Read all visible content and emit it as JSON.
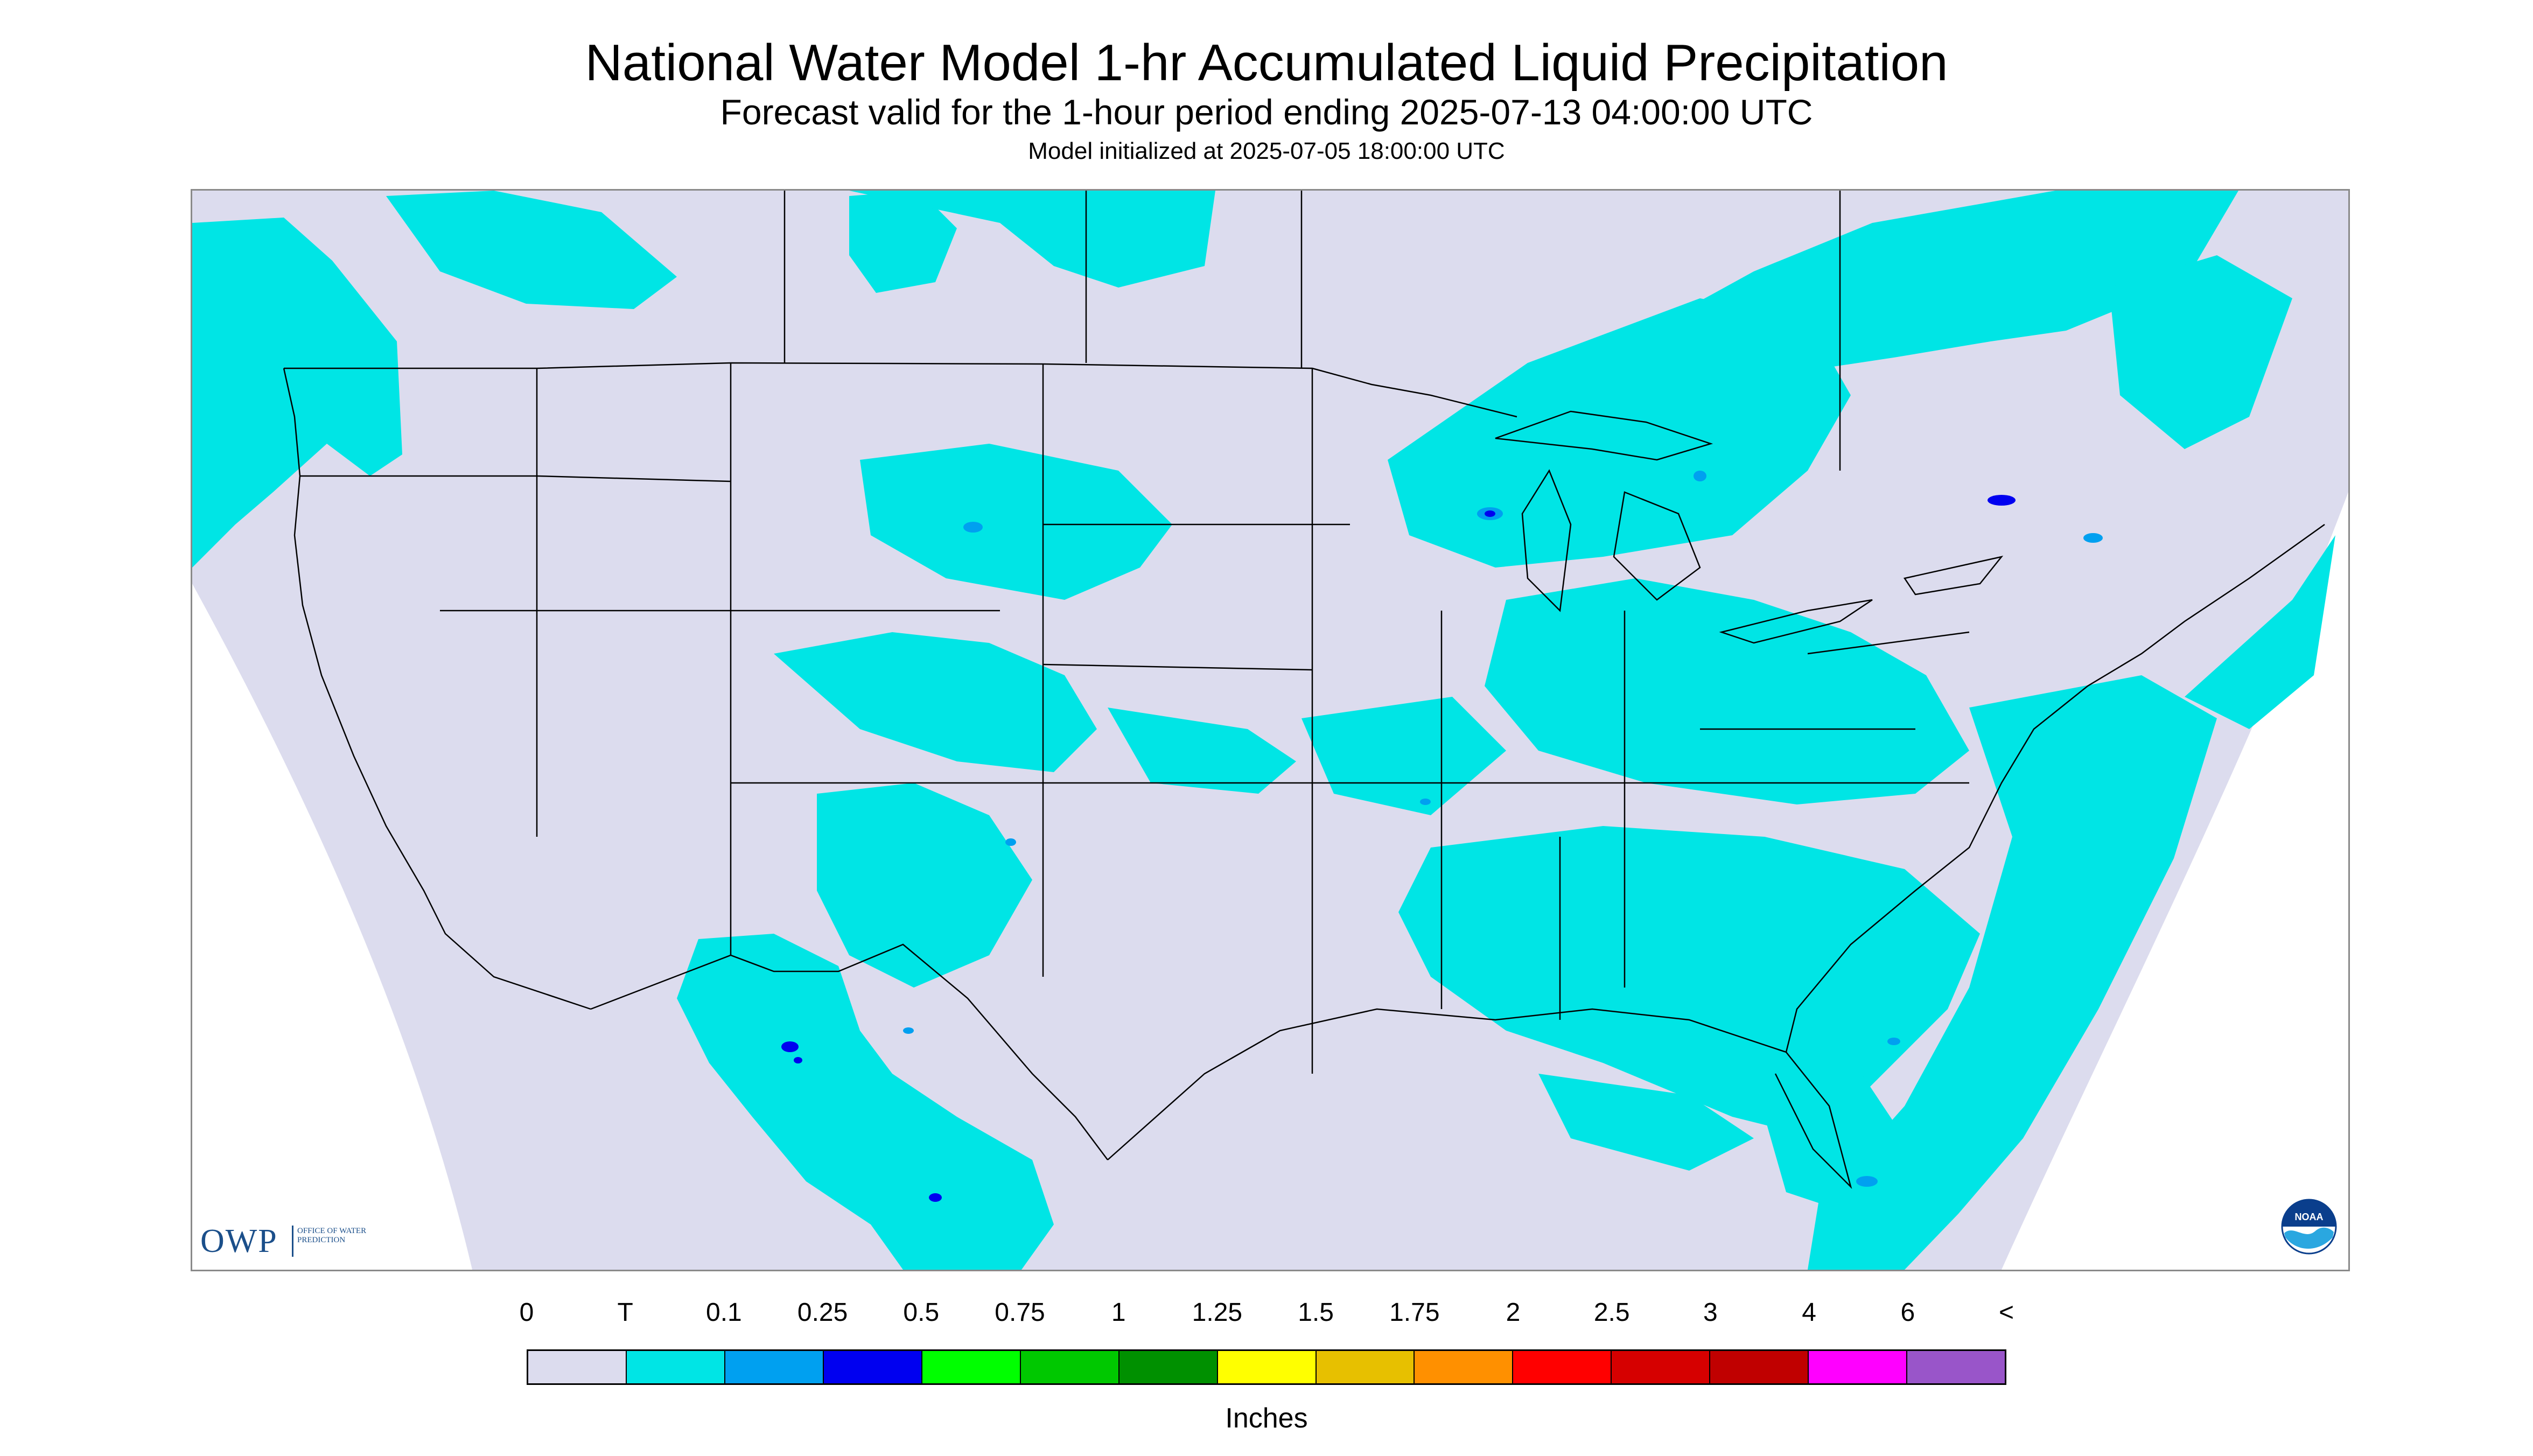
{
  "header": {
    "title": "National Water Model 1-hr Accumulated Liquid Precipitation",
    "subtitle": "Forecast valid for the 1-hour period ending 2025-07-13 04:00:00 UTC",
    "init": "Model initialized at 2025-07-05 18:00:00 UTC"
  },
  "map": {
    "region": "Continental United States",
    "projection": "Lambert conformal",
    "no_data_color": "#ffffff",
    "background_color": "#dcdcee",
    "boundary_color": "#000000",
    "precip_areas": [
      {
        "area": "Pacific Northwest / British Columbia coast",
        "level": "T-0.1"
      },
      {
        "area": "Southern Canada prairies",
        "level": "T-0.1"
      },
      {
        "area": "Northern Rockies / High Plains (MT, WY, ND, SD)",
        "level": "T-0.1"
      },
      {
        "area": "Central Plains (NE, KS, CO)",
        "level": "T-0.1"
      },
      {
        "area": "Upper Midwest / Great Lakes",
        "level": "T-0.25"
      },
      {
        "area": "Northern Ontario / Quebec",
        "level": "T-0.1"
      },
      {
        "area": "Ohio Valley / Mid-Atlantic",
        "level": "T-0.1"
      },
      {
        "area": "Southeast US / Florida",
        "level": "T-0.1"
      },
      {
        "area": "Gulf of Mexico",
        "level": "T-0.1"
      },
      {
        "area": "Western Atlantic",
        "level": "T-0.1"
      },
      {
        "area": "Southwest US / Sierra Madre Occidental",
        "level": "T-0.5"
      }
    ]
  },
  "legend": {
    "labels": [
      "0",
      "T",
      "0.1",
      "0.25",
      "0.5",
      "0.75",
      "1",
      "1.25",
      "1.5",
      "1.75",
      "2",
      "2.5",
      "3",
      "4",
      "6",
      "<"
    ],
    "colors": [
      "#dcdcee",
      "#00e5e5",
      "#00a0f0",
      "#0000f0",
      "#00ff00",
      "#00c800",
      "#009000",
      "#ffff00",
      "#e7c000",
      "#ff9000",
      "#ff0000",
      "#d60000",
      "#c00000",
      "#ff00ff",
      "#9955c9"
    ],
    "units": "Inches"
  },
  "logos": {
    "owp": {
      "text": "OWP",
      "subtext": "OFFICE OF WATER PREDICTION"
    },
    "noaa": {
      "text": "NOAA"
    }
  }
}
